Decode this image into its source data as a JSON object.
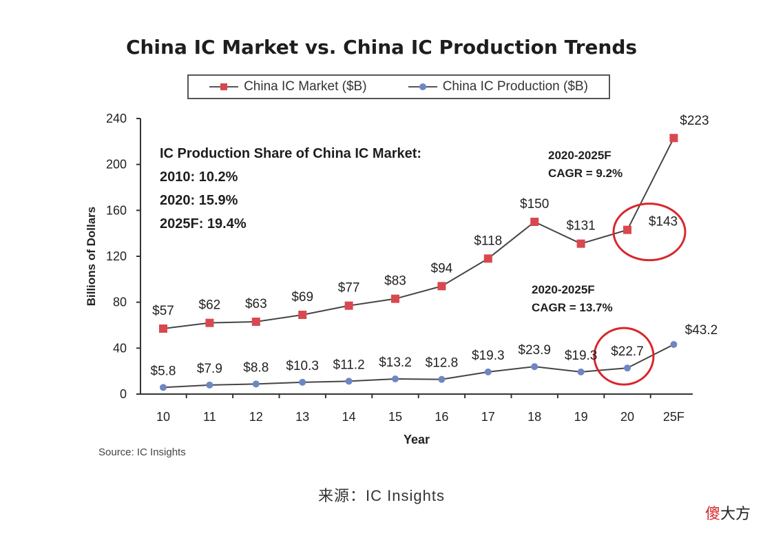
{
  "chart_data": {
    "type": "line",
    "title": "China IC Market vs. China IC Production Trends",
    "xlabel": "Year",
    "ylabel": "Billions of Dollars",
    "categories": [
      "10",
      "11",
      "12",
      "13",
      "14",
      "15",
      "16",
      "17",
      "18",
      "19",
      "20",
      "25F"
    ],
    "ylim": [
      0,
      240
    ],
    "yticks": [
      0,
      40,
      80,
      120,
      160,
      200,
      240
    ],
    "grid": false,
    "legend_position": "top",
    "series": [
      {
        "name": "China IC Market ($B)",
        "marker": "square",
        "color": "#d9484f",
        "values": [
          57,
          62,
          63,
          69,
          77,
          83,
          94,
          118,
          150,
          131,
          143,
          223
        ],
        "labels": [
          "$57",
          "$62",
          "$63",
          "$69",
          "$77",
          "$83",
          "$94",
          "$118",
          "$150",
          "$131",
          "$143",
          "$223"
        ]
      },
      {
        "name": "China IC Production ($B)",
        "marker": "diamond",
        "color": "#6f86c4",
        "values": [
          5.8,
          7.9,
          8.8,
          10.3,
          11.2,
          13.2,
          12.8,
          19.3,
          23.9,
          19.3,
          22.7,
          43.2
        ],
        "labels": [
          "$5.8",
          "$7.9",
          "$8.8",
          "$10.3",
          "$11.2",
          "$13.2",
          "$12.8",
          "$19.3",
          "$23.9",
          "$19.3",
          "$22.7",
          "$43.2"
        ]
      }
    ],
    "annotations": {
      "share": {
        "heading": "IC Production Share of China IC Market:",
        "lines": [
          "2010: 10.2%",
          "2020: 15.9%",
          "2025F: 19.4%"
        ]
      },
      "cagr_market": [
        "2020-2025F",
        "CAGR = 9.2%"
      ],
      "cagr_production": [
        "2020-2025F",
        "CAGR = 13.7%"
      ],
      "highlight_color": "#d9262c"
    },
    "source": "Source: IC Insights"
  },
  "caption": "来源：IC Insights",
  "watermark": {
    "first": "傻",
    "rest": "大方"
  },
  "colors": {
    "axis": "#333333",
    "line": "#444444",
    "text": "#222222"
  }
}
